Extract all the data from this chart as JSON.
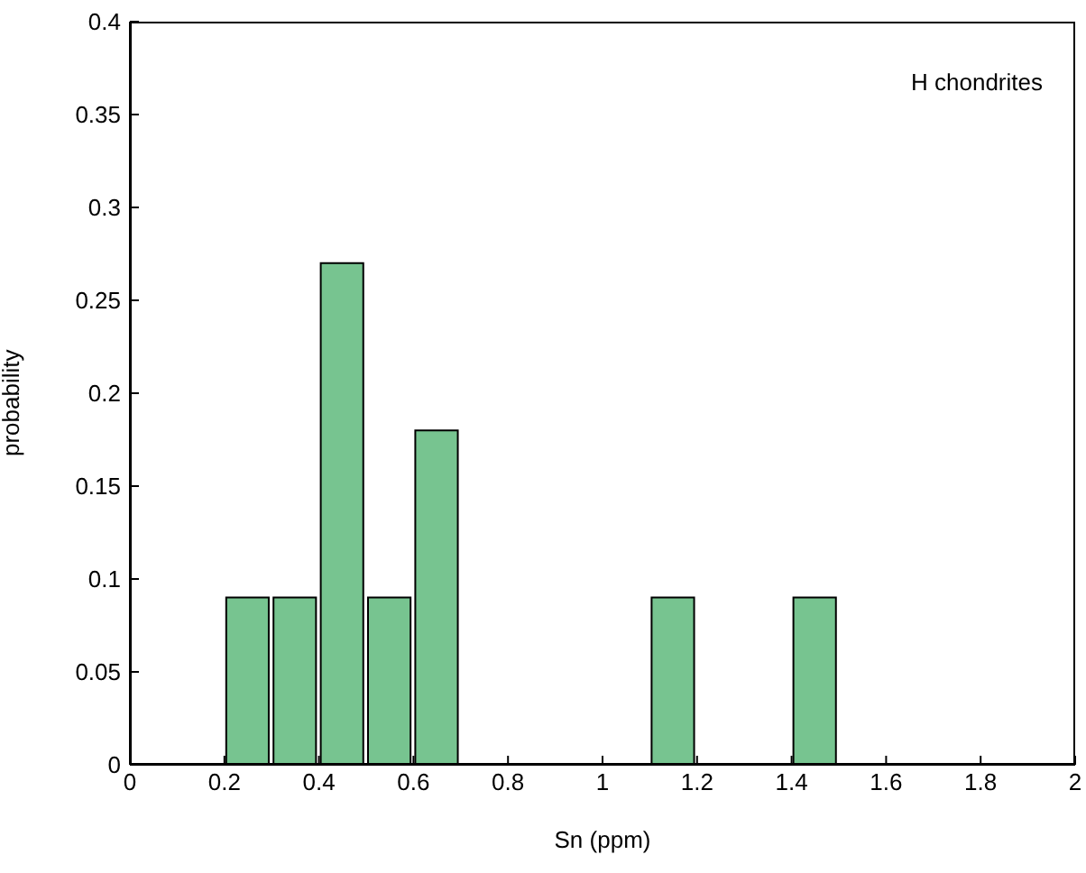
{
  "chart_data": {
    "type": "histogram",
    "xlabel": "Sn (ppm)",
    "ylabel": "probability",
    "annotations": [
      "H chondrites"
    ],
    "bins": [
      0.2,
      0.3,
      0.4,
      0.5,
      0.6,
      0.7,
      0.8,
      0.9,
      1.0,
      1.1,
      1.2,
      1.3,
      1.4,
      1.5
    ],
    "values": [
      0.09,
      0.09,
      0.27,
      0.09,
      0.18,
      0,
      0,
      0,
      0,
      0.09,
      0,
      0,
      0.09
    ],
    "color": "#77c490",
    "xlim": [
      0,
      2
    ],
    "xticks": [
      0,
      0.2,
      0.4,
      0.6,
      0.8,
      1,
      1.2,
      1.4,
      1.6,
      1.8,
      2
    ],
    "ylim": [
      0,
      0.4
    ],
    "yticks": [
      0,
      0.05,
      0.1,
      0.15,
      0.2,
      0.25,
      0.3,
      0.35,
      0.4
    ],
    "grid": false
  }
}
